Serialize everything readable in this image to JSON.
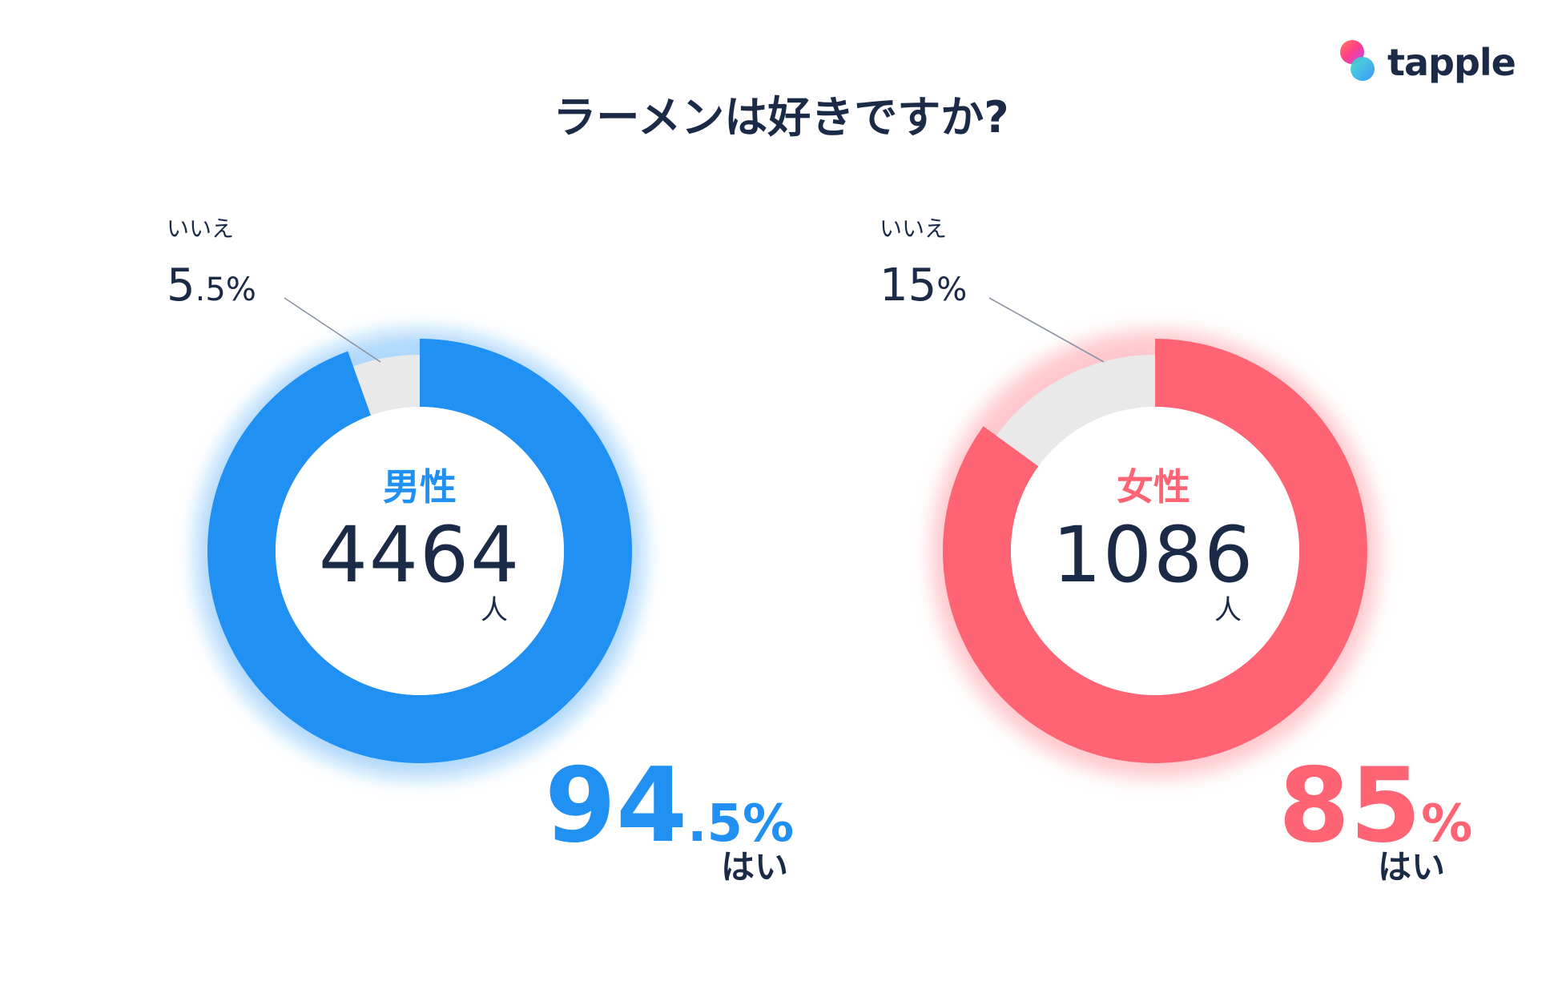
{
  "brand": {
    "name": "tapple"
  },
  "title": "ラーメンは好きですか?",
  "colors": {
    "male": "#2190f3",
    "female": "#fe6474",
    "no": "#e9e9e9",
    "text": "#1b2a47",
    "leader": "#8a93a3"
  },
  "chart_data": [
    {
      "type": "pie",
      "donut": true,
      "center_label": "男性",
      "count": "4464",
      "count_unit": "人",
      "categories": [
        "はい",
        "いいえ"
      ],
      "values": [
        94.5,
        5.5
      ],
      "labels": {
        "yes": {
          "name": "はい",
          "int": "94",
          "dec": ".5",
          "pct": "%"
        },
        "no": {
          "name": "いいえ",
          "int": "5",
          "dec": ".5",
          "pct": "%"
        }
      }
    },
    {
      "type": "pie",
      "donut": true,
      "center_label": "女性",
      "count": "1086",
      "count_unit": "人",
      "categories": [
        "はい",
        "いいえ"
      ],
      "values": [
        85,
        15
      ],
      "labels": {
        "yes": {
          "name": "はい",
          "int": "85",
          "dec": "",
          "pct": "%"
        },
        "no": {
          "name": "いいえ",
          "int": "15",
          "dec": "",
          "pct": "%"
        }
      }
    }
  ]
}
